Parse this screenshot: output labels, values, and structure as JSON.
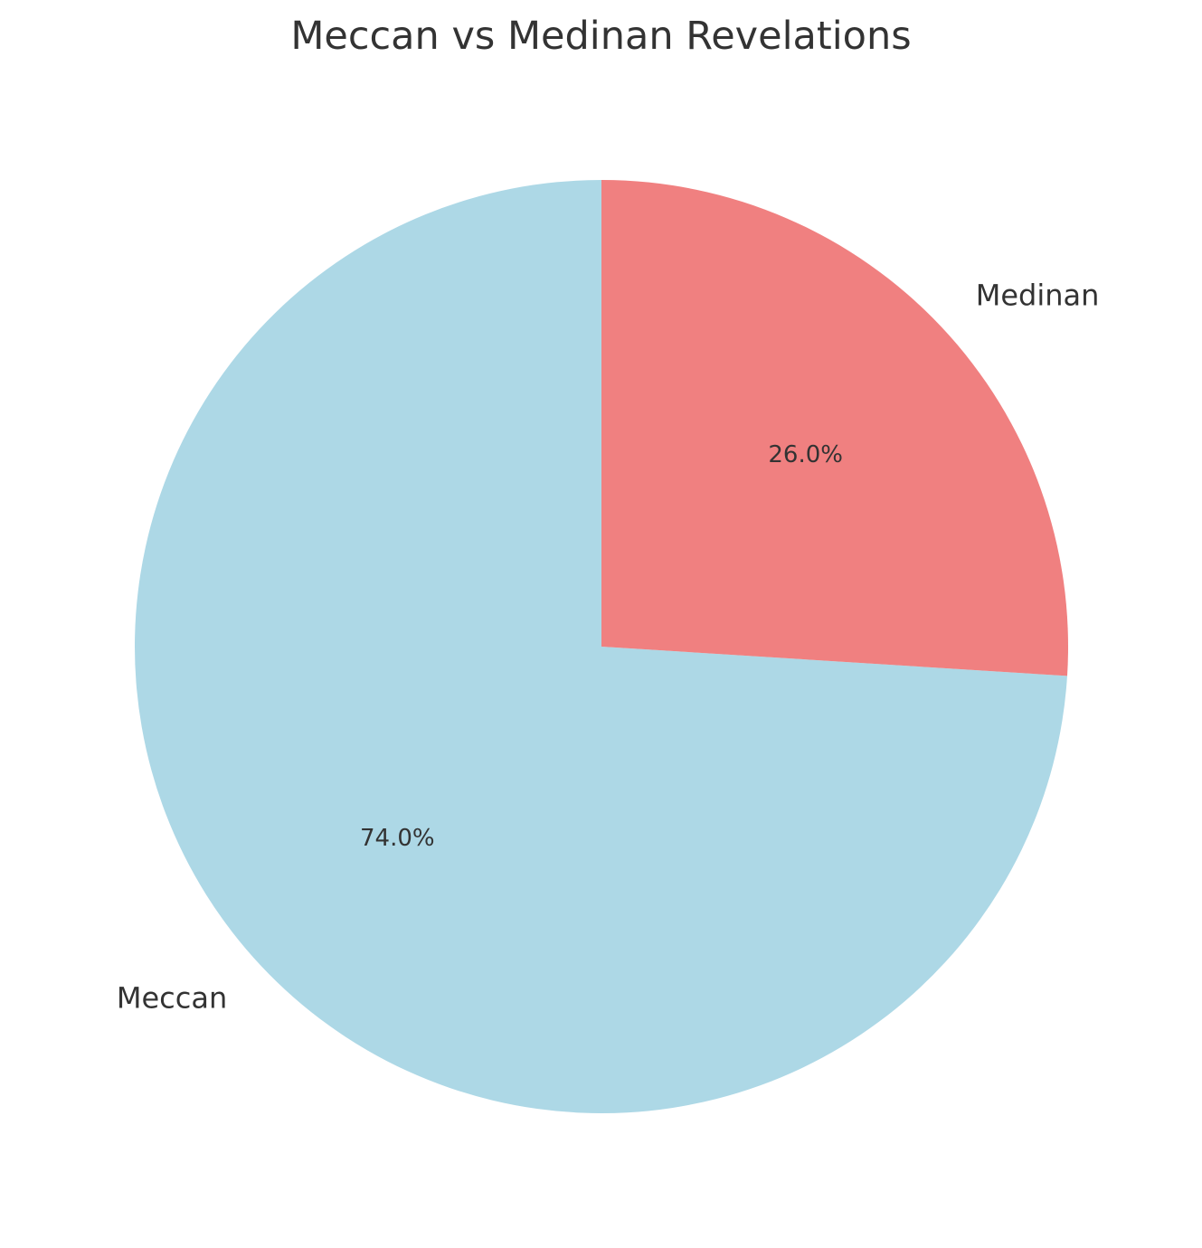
{
  "chart_data": {
    "type": "pie",
    "title": "Meccan vs Medinan Revelations",
    "start_angle_deg": 90,
    "direction": "clockwise-from-top-for-second-slice",
    "slices": [
      {
        "label": "Meccan",
        "value": 74.0,
        "pct_label": "74.0%",
        "color": "#ADD8E6"
      },
      {
        "label": "Medinan",
        "value": 26.0,
        "pct_label": "26.0%",
        "color": "#F08080"
      }
    ]
  }
}
